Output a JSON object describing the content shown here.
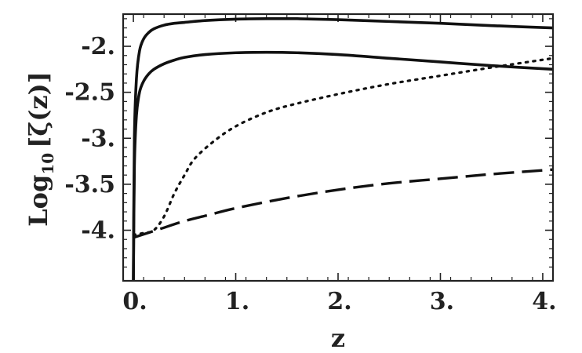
{
  "chart_data": {
    "type": "line",
    "xlabel": "z",
    "ylabel_main": "Log",
    "ylabel_sub": "10",
    "ylabel_rest": "[ζ(z)]",
    "xlim": [
      -0.1,
      4.1
    ],
    "ylim": [
      -4.55,
      -1.65
    ],
    "xticks": [
      {
        "value": 0,
        "label": "0."
      },
      {
        "value": 1,
        "label": "1."
      },
      {
        "value": 2,
        "label": "2."
      },
      {
        "value": 3,
        "label": "3."
      },
      {
        "value": 4,
        "label": "4."
      }
    ],
    "yticks": [
      {
        "value": -2.0,
        "label": "-2."
      },
      {
        "value": -2.5,
        "label": "-2.5"
      },
      {
        "value": -3.0,
        "label": "-3."
      },
      {
        "value": -3.5,
        "label": "-3.5"
      },
      {
        "value": -4.0,
        "label": "-4."
      }
    ],
    "series": [
      {
        "style": "solid",
        "x": [
          0.0,
          0.01,
          0.03,
          0.06,
          0.1,
          0.15,
          0.2,
          0.3,
          0.4,
          0.5,
          0.7,
          1.0,
          1.3,
          1.6,
          2.0,
          2.5,
          3.0,
          3.5,
          4.1
        ],
        "y": [
          -4.55,
          -3.0,
          -2.35,
          -2.05,
          -1.92,
          -1.85,
          -1.81,
          -1.77,
          -1.75,
          -1.74,
          -1.72,
          -1.705,
          -1.7,
          -1.7,
          -1.71,
          -1.73,
          -1.75,
          -1.775,
          -1.8
        ]
      },
      {
        "style": "solid",
        "x": [
          0.0,
          0.01,
          0.03,
          0.06,
          0.1,
          0.15,
          0.2,
          0.3,
          0.4,
          0.5,
          0.7,
          1.0,
          1.3,
          1.6,
          2.0,
          2.5,
          3.0,
          3.5,
          4.1
        ],
        "y": [
          -4.55,
          -3.3,
          -2.75,
          -2.5,
          -2.38,
          -2.3,
          -2.25,
          -2.19,
          -2.15,
          -2.12,
          -2.09,
          -2.07,
          -2.065,
          -2.07,
          -2.09,
          -2.13,
          -2.17,
          -2.21,
          -2.25
        ]
      },
      {
        "style": "dotted",
        "x": [
          0.0,
          0.1,
          0.2,
          0.3,
          0.4,
          0.5,
          0.6,
          0.8,
          1.0,
          1.25,
          1.5,
          2.0,
          2.5,
          3.0,
          3.5,
          4.1
        ],
        "y": [
          -4.05,
          -4.03,
          -4.0,
          -3.85,
          -3.6,
          -3.4,
          -3.22,
          -3.02,
          -2.87,
          -2.74,
          -2.65,
          -2.52,
          -2.41,
          -2.32,
          -2.23,
          -2.13
        ]
      },
      {
        "style": "dashed",
        "x": [
          0.0,
          0.25,
          0.5,
          0.75,
          1.0,
          1.5,
          2.0,
          2.5,
          3.0,
          3.5,
          4.1
        ],
        "y": [
          -4.08,
          -3.99,
          -3.9,
          -3.83,
          -3.76,
          -3.65,
          -3.56,
          -3.49,
          -3.44,
          -3.39,
          -3.34
        ]
      }
    ]
  }
}
